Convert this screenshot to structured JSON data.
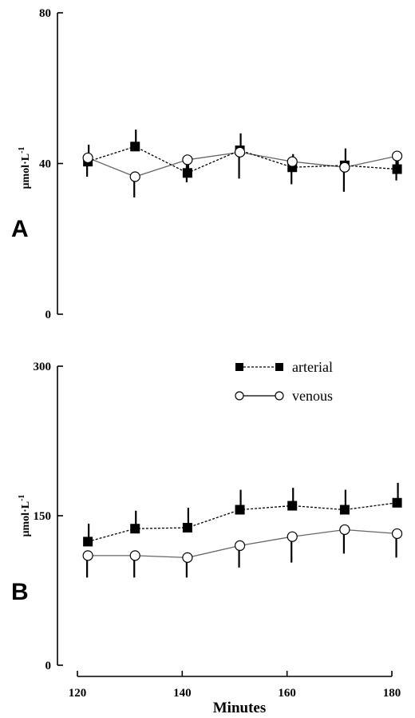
{
  "chart_data": [
    {
      "type": "line",
      "panel_label": "A",
      "ylabel_main": "μmol·L",
      "ylabel_exp": "-1",
      "ylim": [
        0,
        80
      ],
      "yticks": [
        "0",
        "40",
        "80"
      ],
      "x": [
        122,
        131,
        141,
        151,
        161,
        171,
        181
      ],
      "series": [
        {
          "name": "arterial",
          "marker": "filled-square",
          "line": "dotted",
          "values": [
            40.5,
            44.5,
            37.5,
            43.5,
            39,
            39.5,
            38.5
          ],
          "errors": [
            4.5,
            4.5,
            3,
            4.5,
            3.5,
            4.5,
            2.5
          ]
        },
        {
          "name": "venous",
          "marker": "open-circle",
          "line": "solid",
          "values": [
            41.5,
            36.5,
            41,
            43,
            40.5,
            39,
            42
          ],
          "errors": [
            5,
            5.5,
            6,
            7,
            6,
            6.5,
            6.5
          ]
        }
      ]
    },
    {
      "type": "line",
      "panel_label": "B",
      "ylabel_main": "μmol·L",
      "ylabel_exp": "-1",
      "ylim": [
        0,
        300
      ],
      "yticks": [
        "0",
        "150",
        "300"
      ],
      "xlim": [
        120,
        180
      ],
      "xticks": [
        "120",
        "140",
        "160",
        "180"
      ],
      "xlabel": "Minutes",
      "x": [
        122,
        131,
        141,
        151,
        161,
        171,
        181
      ],
      "series": [
        {
          "name": "arterial",
          "marker": "filled-square",
          "line": "dotted",
          "values": [
            124,
            137,
            138,
            156,
            160,
            156,
            163
          ],
          "errors": [
            18,
            18,
            20,
            20,
            18,
            20,
            20
          ]
        },
        {
          "name": "venous",
          "marker": "open-circle",
          "line": "solid",
          "values": [
            110,
            110,
            108,
            120,
            129,
            136,
            132
          ],
          "errors": [
            22,
            22,
            20,
            22,
            26,
            24,
            24
          ]
        }
      ],
      "legend": {
        "placement": "top-right",
        "items": [
          {
            "label": "arterial",
            "marker": "filled-square",
            "line": "dotted"
          },
          {
            "label": "venous",
            "marker": "open-circle",
            "line": "solid"
          }
        ]
      }
    }
  ]
}
